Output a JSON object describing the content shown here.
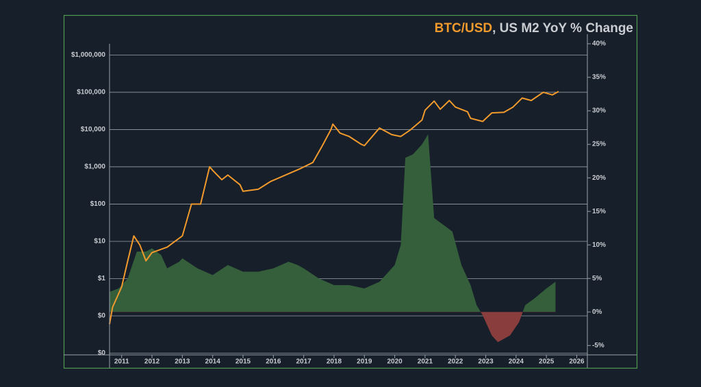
{
  "chart_data": {
    "type": "dual-axis",
    "title_parts": [
      "BTC/USD",
      ", US M2 YoY % Change"
    ],
    "title_colors": [
      "#f39a2c",
      "#c9ccd1"
    ],
    "xlim": [
      2010.6,
      2026.35
    ],
    "xticks": [
      2011,
      2012,
      2013,
      2014,
      2015,
      2016,
      2017,
      2018,
      2019,
      2020,
      2021,
      2022,
      2023,
      2024,
      2025,
      2026
    ],
    "ylim": [
      0.009,
      2000000
    ],
    "log_scale": true,
    "yticks": [
      {
        "value": 0.01,
        "label": "$0"
      },
      {
        "value": 0.1,
        "label": "$0"
      },
      {
        "value": 1,
        "label": "$1"
      },
      {
        "value": 10,
        "label": "$10"
      },
      {
        "value": 100,
        "label": "$100"
      },
      {
        "value": 1000,
        "label": "$1,000"
      },
      {
        "value": 10000,
        "label": "$10,000"
      },
      {
        "value": 100000,
        "label": "$100,000"
      },
      {
        "value": 1000000,
        "label": "$1,000,000"
      }
    ],
    "y2lim": [
      -6.4,
      40
    ],
    "y2ticks": [
      {
        "value": -5,
        "label": "-5%"
      },
      {
        "value": 0,
        "label": "0%"
      },
      {
        "value": 5,
        "label": "5%"
      },
      {
        "value": 10,
        "label": "10%"
      },
      {
        "value": 15,
        "label": "15%"
      },
      {
        "value": 20,
        "label": "20%"
      },
      {
        "value": 25,
        "label": "25%"
      },
      {
        "value": 30,
        "label": "30%"
      },
      {
        "value": 35,
        "label": "35%"
      },
      {
        "value": 40,
        "label": "40%"
      }
    ],
    "grid": true,
    "series": [
      {
        "type": "area",
        "axis": "y2",
        "color": "#355f3a",
        "negative_color": "#8a3d3d",
        "x": [
          2010.6,
          2010.9,
          2011.2,
          2011.5,
          2011.8,
          2012.0,
          2012.3,
          2012.5,
          2012.9,
          2013.0,
          2013.5,
          2014.0,
          2014.5,
          2015.0,
          2015.5,
          2016.0,
          2016.5,
          2016.8,
          2017.0,
          2017.5,
          2018.0,
          2018.5,
          2019.0,
          2019.5,
          2020.0,
          2020.2,
          2020.35,
          2020.6,
          2020.9,
          2021.1,
          2021.3,
          2021.6,
          2021.9,
          2022.2,
          2022.5,
          2022.7,
          2022.9,
          2023.2,
          2023.4,
          2023.8,
          2024.1,
          2024.3,
          2024.6,
          2025.0,
          2025.3
        ],
        "values": [
          3,
          3.5,
          5,
          9,
          9,
          9.5,
          8.5,
          6.5,
          7.5,
          8,
          6.5,
          5.5,
          7,
          6,
          6,
          6.5,
          7.5,
          7,
          6.5,
          5,
          4,
          4,
          3.5,
          4.5,
          7,
          10,
          23,
          23.5,
          25,
          26.5,
          14,
          13,
          12,
          7,
          4,
          1,
          -0.5,
          -3.5,
          -4.5,
          -3.5,
          -1.5,
          1,
          2,
          3.5,
          4.5
        ]
      },
      {
        "type": "line",
        "color": "#f39a2c",
        "x": [
          2010.6,
          2010.7,
          2011.0,
          2011.2,
          2011.4,
          2011.6,
          2011.8,
          2012.0,
          2012.5,
          2013.0,
          2013.3,
          2013.6,
          2013.9,
          2014.0,
          2014.3,
          2014.5,
          2014.9,
          2015.0,
          2015.5,
          2015.9,
          2016.5,
          2016.9,
          2017.3,
          2017.6,
          2017.9,
          2017.96,
          2018.2,
          2018.5,
          2018.9,
          2019.0,
          2019.5,
          2019.9,
          2020.2,
          2020.5,
          2020.9,
          2021.0,
          2021.3,
          2021.5,
          2021.8,
          2022.0,
          2022.4,
          2022.5,
          2022.9,
          2023.2,
          2023.6,
          2023.9,
          2024.2,
          2024.5,
          2024.9,
          2025.2,
          2025.4
        ],
        "values": [
          0.06,
          0.17,
          0.6,
          3,
          14,
          8,
          3,
          5,
          7,
          14,
          100,
          100,
          1000,
          800,
          450,
          600,
          330,
          220,
          250,
          400,
          650,
          900,
          1300,
          3500,
          10000,
          14000,
          8000,
          6500,
          4000,
          3700,
          11000,
          7300,
          6500,
          9500,
          18000,
          33000,
          58000,
          35000,
          60000,
          40000,
          30000,
          20000,
          16500,
          28000,
          29000,
          40000,
          70000,
          60000,
          100000,
          85000,
          105000
        ]
      }
    ]
  }
}
